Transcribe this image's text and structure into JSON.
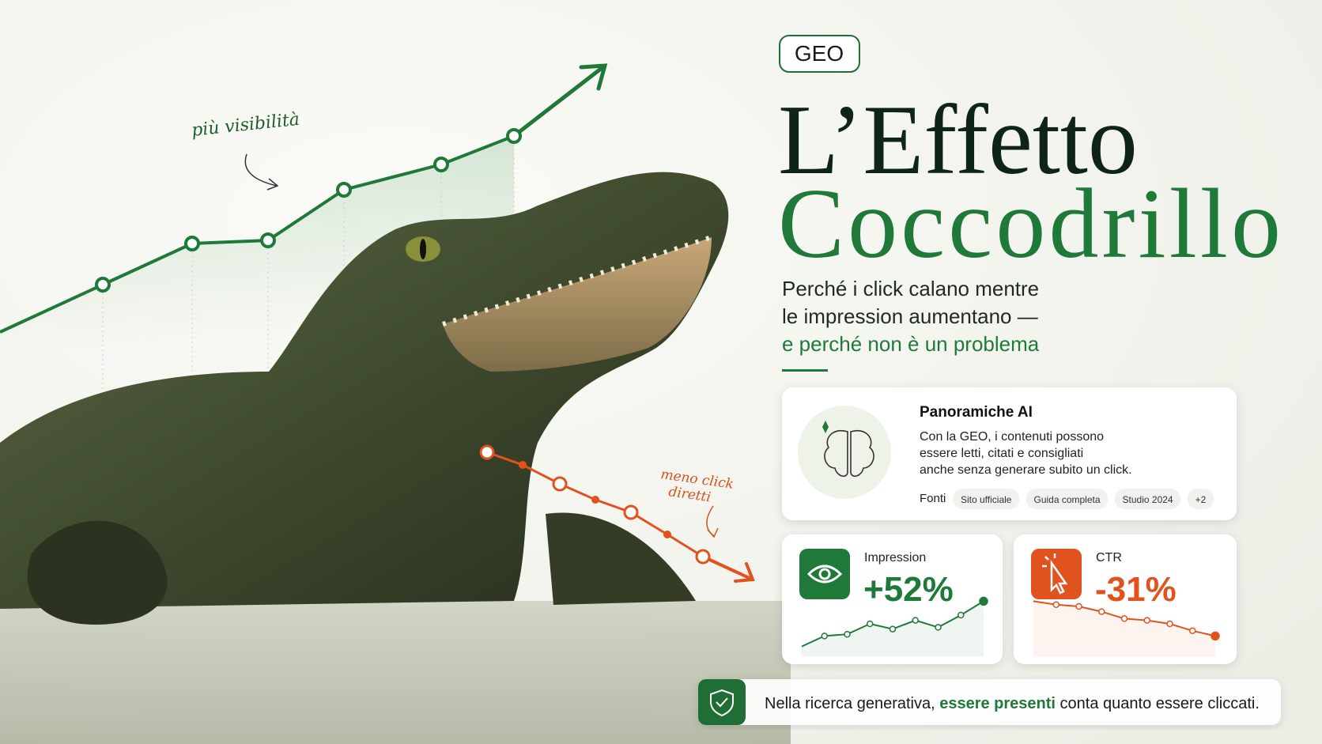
{
  "badge": "GEO",
  "title": {
    "line1": "L’Effetto",
    "line2": "Coccodrillo"
  },
  "subtitle": {
    "line1": "Perché i click calano mentre",
    "line2": "le impression aumentano —",
    "line3": "e perché non è un problema"
  },
  "annotations": {
    "up": "più visibilità",
    "down_line1": "meno click",
    "down_line2": "diretti"
  },
  "growth_line": {
    "values": [
      5,
      20,
      33,
      34,
      50,
      58,
      67
    ]
  },
  "decline_line": {
    "values": [
      47,
      43,
      37,
      32,
      28,
      21,
      14
    ]
  },
  "card": {
    "title": "Panoramiche AI",
    "body": [
      "Con la GEO, i contenuti possono",
      "essere letti, citati e consigliati",
      "anche senza generare subito un click."
    ],
    "sources_label": "Fonti",
    "chips": [
      "Sito ufficiale",
      "Guida completa",
      "Studio 2024",
      "+2"
    ]
  },
  "metrics": [
    {
      "label": "Impression",
      "value": "+52%",
      "color": "#1f7a3a",
      "spark": [
        2,
        8,
        9,
        15,
        12,
        17,
        13,
        20,
        28
      ]
    },
    {
      "label": "CTR",
      "value": "-31%",
      "color": "#e0531f",
      "spark": [
        28,
        26,
        25,
        22,
        18,
        17,
        15,
        11,
        8
      ]
    }
  ],
  "footer": {
    "before": "Nella ricerca generativa,",
    "highlight": "essere presenti",
    "after": "conta quanto essere cliccati."
  }
}
